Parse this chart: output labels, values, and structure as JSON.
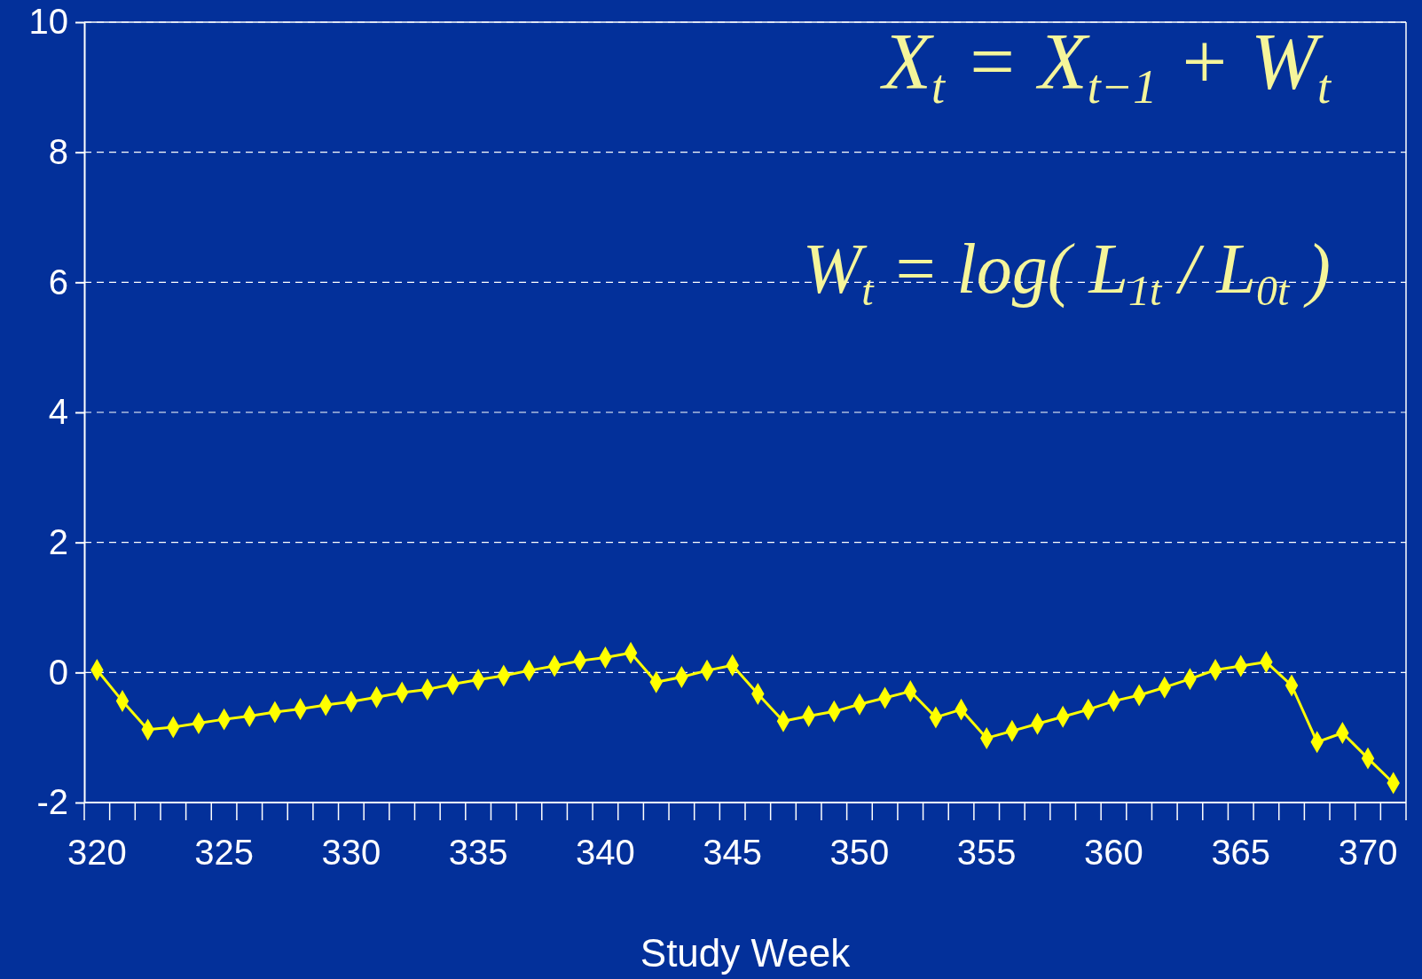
{
  "chart_data": {
    "type": "line",
    "xlabel": "Study Week",
    "categories": [
      "320",
      null,
      null,
      null,
      null,
      "325",
      null,
      null,
      null,
      null,
      "330",
      null,
      null,
      null,
      null,
      "335",
      null,
      null,
      null,
      null,
      "340",
      null,
      null,
      null,
      null,
      "345",
      null,
      null,
      null,
      null,
      "350",
      null,
      null,
      null,
      null,
      "355",
      null,
      null,
      null,
      null,
      "360",
      null,
      null,
      null,
      null,
      "365",
      null,
      null,
      null,
      null,
      "370",
      null
    ],
    "series": [
      {
        "color": "#ffff00",
        "values": [
          0.04,
          -0.44,
          -0.88,
          -0.84,
          -0.78,
          -0.72,
          -0.67,
          -0.61,
          -0.56,
          -0.5,
          -0.45,
          -0.38,
          -0.31,
          -0.26,
          -0.18,
          -0.11,
          -0.05,
          0.03,
          0.1,
          0.18,
          0.23,
          0.3,
          -0.15,
          -0.07,
          0.03,
          0.11,
          -0.33,
          -0.75,
          -0.67,
          -0.6,
          -0.49,
          -0.39,
          -0.29,
          -0.69,
          -0.57,
          -1.01,
          -0.9,
          -0.79,
          -0.68,
          -0.57,
          -0.44,
          -0.35,
          -0.23,
          -0.1,
          0.04,
          0.1,
          0.16,
          -0.2,
          -1.07,
          -0.93,
          -1.32,
          -1.7
        ]
      }
    ],
    "ylim": [
      -2,
      10
    ],
    "yticks": [
      -2,
      0,
      2,
      4,
      6,
      8,
      10
    ],
    "grid": "y",
    "marker": "diamond",
    "line_style": "solid",
    "annotations": [
      "X$_{t}$ = X$_{t−1}$ + W$_{t}$",
      "W$_{t}$ = log( L$_{1t}$ / L$_{0t}$ )"
    ]
  }
}
